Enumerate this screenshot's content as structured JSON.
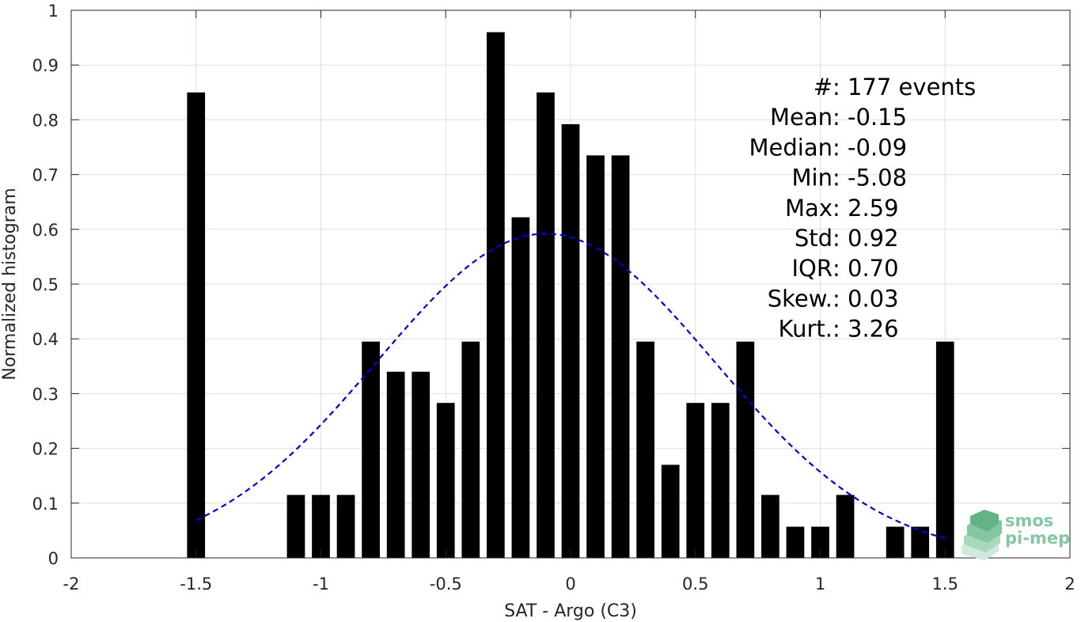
{
  "chart_data": {
    "type": "bar",
    "title": "",
    "xlabel": "SAT - Argo (C3)",
    "ylabel": "Normalized histogram",
    "xlim": [
      -2,
      2
    ],
    "ylim": [
      0,
      1
    ],
    "xticks": [
      "-2",
      "-1.5",
      "-1",
      "-0.5",
      "0",
      "0.5",
      "1",
      "1.5",
      "2"
    ],
    "yticks": [
      "0",
      "0.1",
      "0.2",
      "0.3",
      "0.4",
      "0.5",
      "0.6",
      "0.7",
      "0.8",
      "0.9",
      "1"
    ],
    "grid": true,
    "bar_color": "#000000",
    "bin_width": 0.1,
    "x": [
      -1.5,
      -1.1,
      -1.0,
      -0.9,
      -0.8,
      -0.7,
      -0.6,
      -0.5,
      -0.4,
      -0.3,
      -0.2,
      -0.1,
      0.0,
      0.1,
      0.2,
      0.3,
      0.4,
      0.5,
      0.6,
      0.7,
      0.8,
      0.9,
      1.0,
      1.1,
      1.3,
      1.4,
      1.5
    ],
    "values": [
      0.85,
      0.115,
      0.115,
      0.115,
      0.395,
      0.34,
      0.34,
      0.283,
      0.395,
      0.96,
      0.622,
      0.85,
      0.792,
      0.735,
      0.735,
      0.395,
      0.17,
      0.283,
      0.283,
      0.395,
      0.115,
      0.057,
      0.057,
      0.115,
      0.057,
      0.057,
      0.395
    ],
    "fit_curve": {
      "style": "dashed",
      "color": "#0000dd",
      "mean": -0.1,
      "std": 0.675,
      "peak": 0.592,
      "x_range": [
        -1.5,
        1.5
      ]
    },
    "annotations": [
      {
        "label": "#  ",
        "value": ": 177 events"
      },
      {
        "label": "Mean ",
        "value": ": -0.15"
      },
      {
        "label": "Median ",
        "value": ": -0.09"
      },
      {
        "label": "Min ",
        "value": ": -5.08"
      },
      {
        "label": "Max ",
        "value": ": 2.59"
      },
      {
        "label": "Std ",
        "value": ": 0.92"
      },
      {
        "label": "IQR ",
        "value": ": 0.70"
      },
      {
        "label": "Skew. ",
        "value": ": 0.03"
      },
      {
        "label": "Kurt. ",
        "value": ": 3.26"
      }
    ],
    "logo": {
      "line1": "smos",
      "line2": "pi-mep",
      "color": "#86c7a3"
    }
  }
}
